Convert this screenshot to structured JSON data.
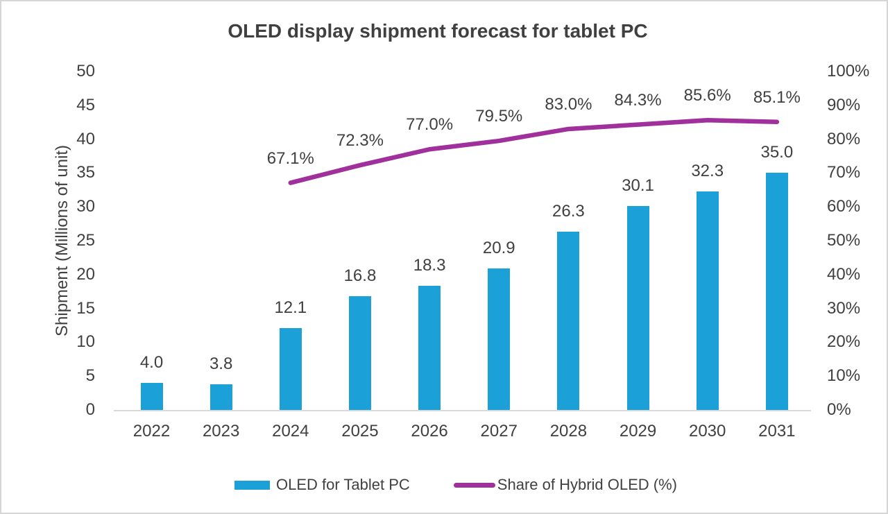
{
  "chart_data": {
    "type": "combo-bar-line",
    "title": "OLED display shipment forecast for tablet PC",
    "ylabel": "Shipment (Millions of unit)",
    "categories": [
      "2022",
      "2023",
      "2024",
      "2025",
      "2026",
      "2027",
      "2028",
      "2029",
      "2030",
      "2031"
    ],
    "series": [
      {
        "name": "OLED for Tablet PC",
        "type": "bar",
        "axis": "left",
        "values": [
          4.0,
          3.8,
          12.1,
          16.8,
          18.3,
          20.9,
          26.3,
          30.1,
          32.3,
          35.0
        ],
        "labels": [
          "4.0",
          "3.8",
          "12.1",
          "16.8",
          "18.3",
          "20.9",
          "26.3",
          "30.1",
          "32.3",
          "35.0"
        ],
        "color": "#1BA0D8"
      },
      {
        "name": "Share of Hybrid OLED (%)",
        "type": "line",
        "axis": "right",
        "values": [
          null,
          null,
          67.1,
          72.3,
          77.0,
          79.5,
          83.0,
          84.3,
          85.6,
          85.1
        ],
        "labels": [
          null,
          null,
          "67.1%",
          "72.3%",
          "77.0%",
          "79.5%",
          "83.0%",
          "84.3%",
          "85.6%",
          "85.1%"
        ],
        "color": "#A0309B"
      }
    ],
    "left_axis": {
      "min": 0,
      "max": 50,
      "ticks": [
        "0",
        "5",
        "10",
        "15",
        "20",
        "25",
        "30",
        "35",
        "40",
        "45",
        "50"
      ]
    },
    "right_axis": {
      "min": 0,
      "max": 100,
      "ticks": [
        "0%",
        "10%",
        "20%",
        "30%",
        "40%",
        "50%",
        "60%",
        "70%",
        "80%",
        "90%",
        "100%"
      ]
    },
    "legend_position": "bottom",
    "grid": false,
    "text_color": "#404040",
    "axis_line_color": "#d9d9d9"
  }
}
